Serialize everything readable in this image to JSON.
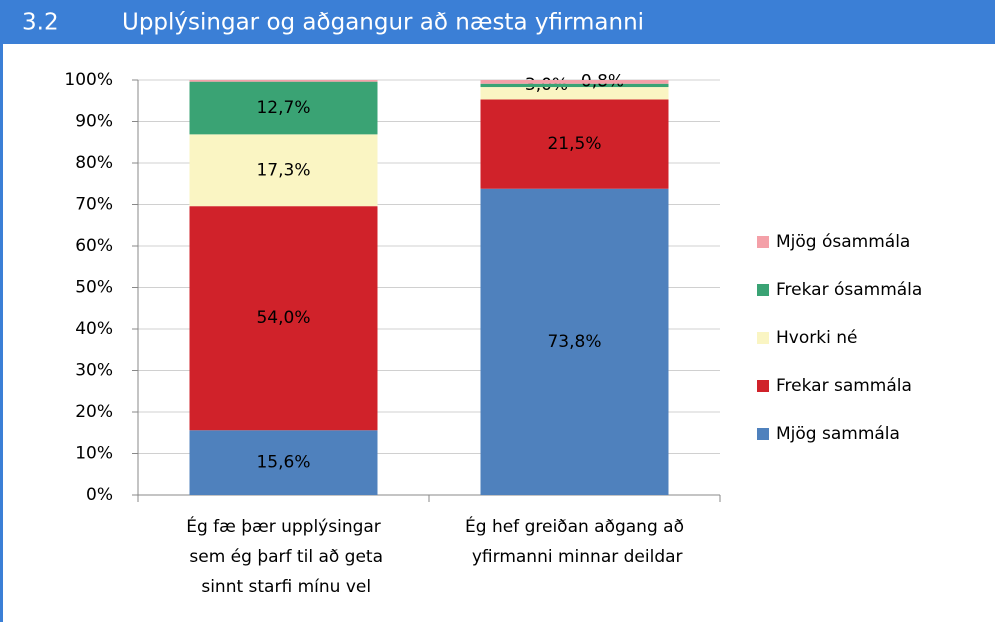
{
  "header": {
    "number": "3.2",
    "title": "Upplýsingar og aðgangur að næsta yfirmanni"
  },
  "chart_data": {
    "type": "stacked_bar",
    "categories": [
      "Ég fæ þær upplýsingar sem ég þarf til að geta sinnt starfi mínu vel",
      "Ég hef greiðan aðgang að yfirmanni minnar deildar"
    ],
    "series": [
      {
        "name": "Mjög sammála",
        "color": "#4f81bd",
        "values": [
          15.6,
          73.8
        ],
        "value_labels": [
          "15,6%",
          "73,8%"
        ]
      },
      {
        "name": "Frekar sammála",
        "color": "#d0222a",
        "values": [
          54.0,
          21.5
        ],
        "value_labels": [
          "54,0%",
          "21,5%"
        ]
      },
      {
        "name": "Hvorki né",
        "color": "#faf5c3",
        "values": [
          17.3,
          3.0
        ],
        "value_labels": [
          "17,3%",
          "3,0%"
        ]
      },
      {
        "name": "Frekar ósammála",
        "color": "#3aa374",
        "values": [
          12.7,
          0.8
        ],
        "value_labels": [
          "12,7%",
          "0,8%"
        ]
      },
      {
        "name": "Mjög ósammála",
        "color": "#f4a0a8",
        "values": [
          0.4,
          0.9
        ],
        "value_labels": [
          null,
          null
        ]
      }
    ],
    "ylim": [
      0,
      100
    ],
    "yticks": [
      {
        "value": 0,
        "label": "0%"
      },
      {
        "value": 10,
        "label": "10%"
      },
      {
        "value": 20,
        "label": "20%"
      },
      {
        "value": 30,
        "label": "30%"
      },
      {
        "value": 40,
        "label": "40%"
      },
      {
        "value": 50,
        "label": "50%"
      },
      {
        "value": 60,
        "label": "60%"
      },
      {
        "value": 70,
        "label": "70%"
      },
      {
        "value": 80,
        "label": "80%"
      },
      {
        "value": 90,
        "label": "90%"
      },
      {
        "value": 100,
        "label": "100%"
      }
    ],
    "grid": true,
    "legend": "right"
  }
}
